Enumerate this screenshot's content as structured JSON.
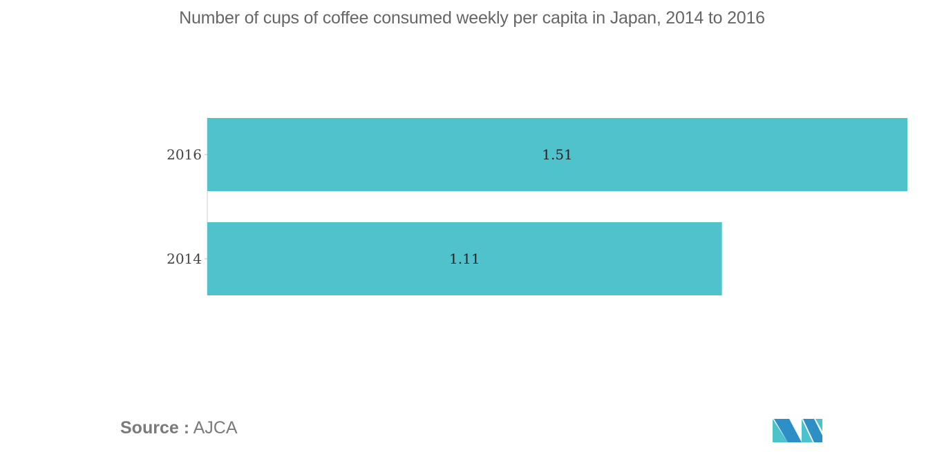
{
  "chart_data": {
    "type": "bar",
    "orientation": "horizontal",
    "title": "Number of cups of coffee consumed weekly per capita in Japan, 2014 to 2016",
    "categories": [
      "2016",
      "2014"
    ],
    "values": [
      1.51,
      1.11
    ],
    "value_labels": [
      "1.51",
      "1.11"
    ],
    "xlabel": "",
    "ylabel": "",
    "xlim": [
      0,
      1.51
    ],
    "grid": false,
    "bar_color": "#50c2cb"
  },
  "source": {
    "label": "Source :",
    "value": "AJCA"
  },
  "logo": {
    "icon": "mordor-intelligence-logo-icon",
    "colors": [
      "#2e8fc6",
      "#4cc2cc"
    ]
  }
}
